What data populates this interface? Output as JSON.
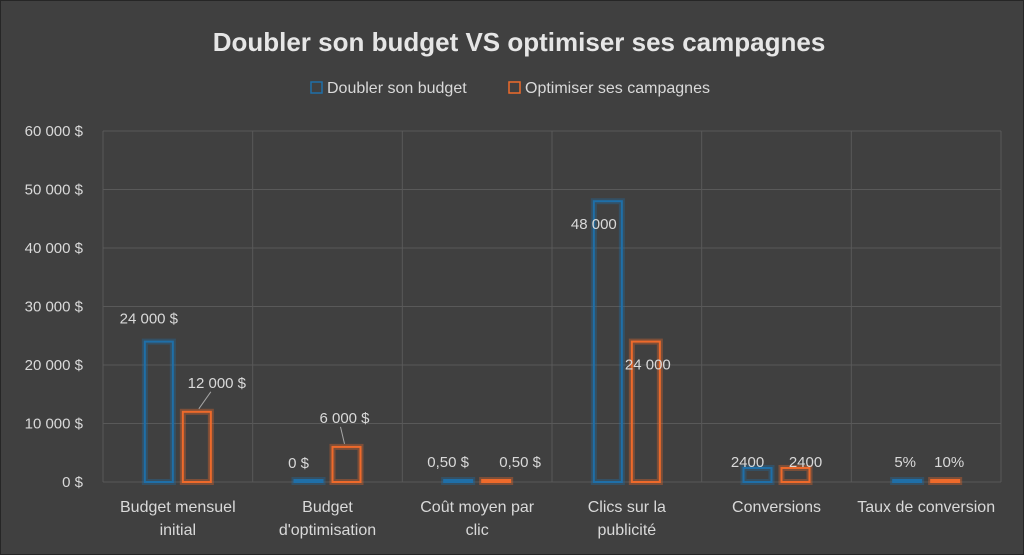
{
  "chart_data": {
    "type": "bar",
    "title": "Doubler son budget VS optimiser ses campagnes",
    "xlabel": "",
    "ylabel": "",
    "ylim": [
      0,
      60000
    ],
    "yticks": [
      0,
      10000,
      20000,
      30000,
      40000,
      50000,
      60000
    ],
    "ytick_labels": [
      "0 $",
      "10 000 $",
      "20 000 $",
      "30 000 $",
      "40 000 $",
      "50 000 $",
      "60 000 $"
    ],
    "grid": true,
    "legend_position": "top",
    "categories": [
      [
        "Budget mensuel",
        "initial"
      ],
      [
        "Budget",
        "d'optimisation"
      ],
      [
        "Coût moyen par",
        "clic"
      ],
      [
        "Clics sur la",
        "publicité"
      ],
      [
        "Conversions"
      ],
      [
        "Taux de conversion"
      ]
    ],
    "series": [
      {
        "name": "Doubler son budget",
        "color": "#1f6fa8",
        "values": [
          24000,
          0,
          0.5,
          48000,
          2400,
          0.05
        ],
        "labels": [
          "24 000 $",
          "0 $",
          "0,50 $",
          "48 000",
          "2400",
          "5%"
        ]
      },
      {
        "name": "Optimiser ses campagnes",
        "color": "#ee6a2b",
        "values": [
          12000,
          6000,
          0.5,
          24000,
          2400,
          0.1
        ],
        "labels": [
          "12 000 $",
          "6 000 $",
          "0,50 $",
          "24 000",
          "2400",
          "10%"
        ]
      }
    ]
  }
}
